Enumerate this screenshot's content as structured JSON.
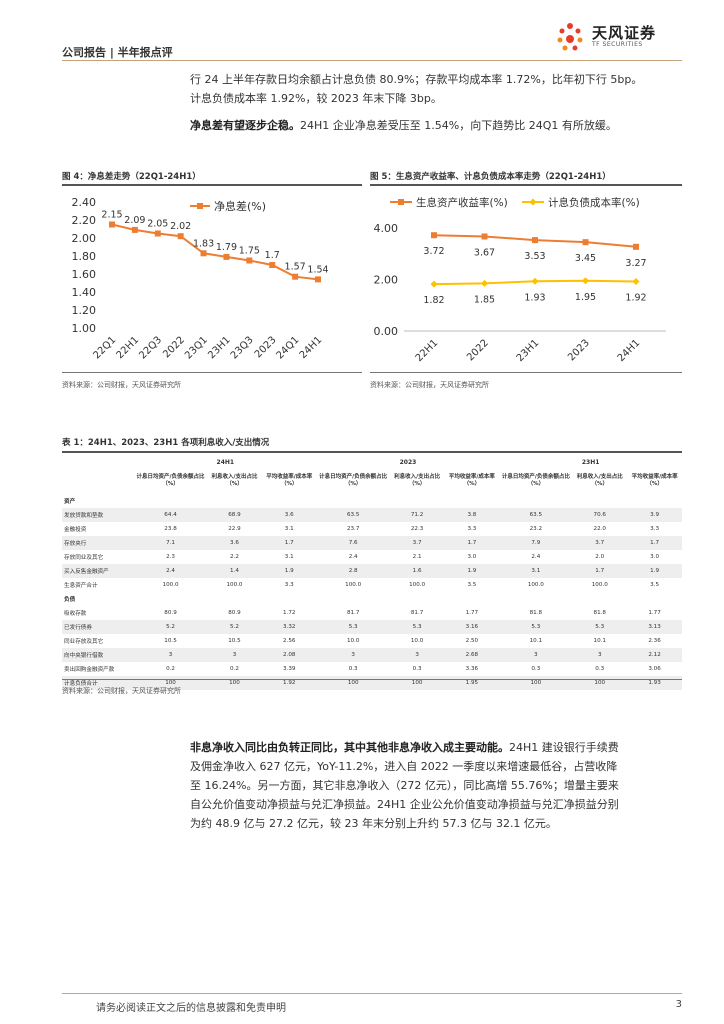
{
  "header": {
    "left": "公司报告 | 半年报点评",
    "logo_cn": "天风证券",
    "logo_en": "TF SECURITIES"
  },
  "intro": {
    "line1": "行 24 上半年存款日均余额占计息负债 80.9%；存款平均成本率 1.72%，比年初下行 5bp。",
    "line2": "计息负债成本率 1.92%，较 2023 年末下降 3bp。",
    "bold": "净息差有望逐步企稳。",
    "rest": "24H1 企业净息差受压至 1.54%，向下趋势比 24Q1 有所放缓。"
  },
  "fig4": {
    "title": "图 4：净息差走势（22Q1-24H1）",
    "source": "资料来源：公司财报，天风证券研究所"
  },
  "fig5": {
    "title": "图 5：生息资产收益率、计息负债成本率走势（22Q1-24H1）",
    "source": "资料来源：公司财报，天风证券研究所"
  },
  "chart_data": [
    {
      "type": "line",
      "categories": [
        "22Q1",
        "22H1",
        "22Q3",
        "2022",
        "23Q1",
        "23H1",
        "23Q3",
        "2023",
        "24Q1",
        "24H1"
      ],
      "series": [
        {
          "name": "净息差(%)",
          "values": [
            2.15,
            2.09,
            2.05,
            2.02,
            1.83,
            1.79,
            1.75,
            1.7,
            1.57,
            1.54
          ],
          "color": "#ed7d31"
        }
      ],
      "ylim": [
        1.0,
        2.4
      ],
      "yticks": [
        "2.40",
        "2.20",
        "2.00",
        "1.80",
        "1.60",
        "1.40",
        "1.20",
        "1.00"
      ],
      "legend": "top-right"
    },
    {
      "type": "line",
      "categories": [
        "22H1",
        "2022",
        "23H1",
        "2023",
        "24H1"
      ],
      "series": [
        {
          "name": "生息资产收益率(%)",
          "values": [
            3.72,
            3.67,
            3.53,
            3.45,
            3.27
          ],
          "color": "#ed7d31"
        },
        {
          "name": "计息负债成本率(%)",
          "values": [
            1.82,
            1.85,
            1.93,
            1.95,
            1.92
          ],
          "color": "#ffc000"
        }
      ],
      "ylim": [
        0,
        4
      ],
      "yticks": [
        "4.00",
        "2.00",
        "0.00"
      ],
      "legend": "top"
    }
  ],
  "table": {
    "title": "表 1：24H1、2023、23H1 各项利息收入/支出情况",
    "source": "资料来源：公司财报，天风证券研究所",
    "periods": [
      "24H1",
      "2023",
      "23H1"
    ],
    "subheads": [
      "计息日均资产/负债余额占比（%）",
      "利息收入/支出占比（%）",
      "平均收益率/成本率（%）"
    ],
    "sections": [
      {
        "name": "资产",
        "rows": [
          {
            "label": "发放贷款和垫款",
            "vals": [
              "64.4",
              "68.9",
              "3.6",
              "63.5",
              "71.2",
              "3.8",
              "63.5",
              "70.6",
              "3.9"
            ]
          },
          {
            "label": "金融投资",
            "vals": [
              "23.8",
              "22.9",
              "3.1",
              "23.7",
              "22.3",
              "3.3",
              "23.2",
              "22.0",
              "3.3"
            ]
          },
          {
            "label": "存放央行",
            "vals": [
              "7.1",
              "3.6",
              "1.7",
              "7.6",
              "3.7",
              "1.7",
              "7.9",
              "3.7",
              "1.7"
            ]
          },
          {
            "label": "存放同业及其它",
            "vals": [
              "2.3",
              "2.2",
              "3.1",
              "2.4",
              "2.1",
              "3.0",
              "2.4",
              "2.0",
              "3.0"
            ]
          },
          {
            "label": "买入反售金融资产",
            "vals": [
              "2.4",
              "1.4",
              "1.9",
              "2.8",
              "1.6",
              "1.9",
              "3.1",
              "1.7",
              "1.9"
            ]
          },
          {
            "label": "生息资产合计",
            "vals": [
              "100.0",
              "100.0",
              "3.3",
              "100.0",
              "100.0",
              "3.5",
              "100.0",
              "100.0",
              "3.5"
            ]
          }
        ]
      },
      {
        "name": "负债",
        "rows": [
          {
            "label": "吸收存款",
            "vals": [
              "80.9",
              "80.9",
              "1.72",
              "81.7",
              "81.7",
              "1.77",
              "81.8",
              "81.8",
              "1.77"
            ]
          },
          {
            "label": "已发行债券",
            "vals": [
              "5.2",
              "5.2",
              "3.32",
              "5.3",
              "5.3",
              "3.16",
              "5.3",
              "5.3",
              "3.13"
            ]
          },
          {
            "label": "同业存放及其它",
            "vals": [
              "10.5",
              "10.5",
              "2.56",
              "10.0",
              "10.0",
              "2.50",
              "10.1",
              "10.1",
              "2.36"
            ]
          },
          {
            "label": "向中央银行借款",
            "vals": [
              "3",
              "3",
              "2.08",
              "3",
              "3",
              "2.68",
              "3",
              "3",
              "2.12"
            ]
          },
          {
            "label": "卖出回购金融资产款",
            "vals": [
              "0.2",
              "0.2",
              "3.39",
              "0.3",
              "0.3",
              "3.36",
              "0.3",
              "0.3",
              "3.06"
            ]
          },
          {
            "label": "计息负债合计",
            "vals": [
              "100",
              "100",
              "1.92",
              "100",
              "100",
              "1.95",
              "100",
              "100",
              "1.93"
            ]
          }
        ]
      }
    ]
  },
  "para2": {
    "bold": "非息净收入同比由负转正同比，其中其他非息净收入成主要动能。",
    "line1": "24H1 建设银行手续费",
    "line2": "及佣金净收入 627 亿元，YoY-11.2%，进入自 2022 一季度以来增速最低谷，占营收降",
    "line3": "至 16.24%。另一方面，其它非息净收入（272 亿元），同比高增 55.76%；增量主要来",
    "line4": "自公允价值变动净损益与兑汇净损益。24H1 企业公允价值变动净损益与兑汇净损益分别",
    "line5": "为约 48.9 亿与 27.2 亿元，较 23 年末分别上升约 57.3 亿与 32.1 亿元。"
  },
  "footer": {
    "text": "请务必阅读正文之后的信息披露和免责申明",
    "page": "3"
  }
}
